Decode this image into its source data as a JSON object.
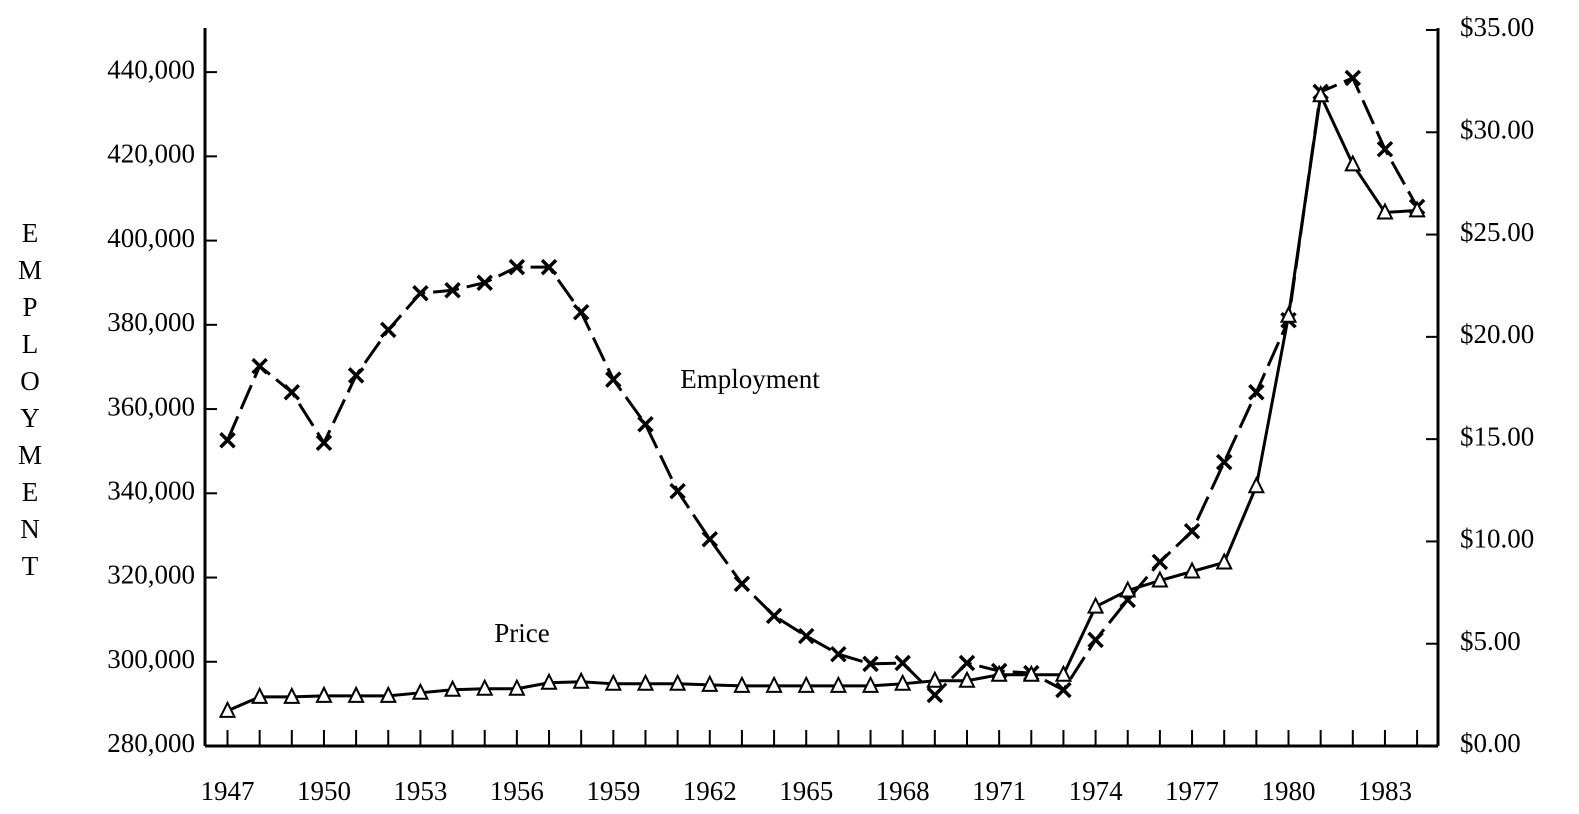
{
  "chart_data": {
    "type": "line",
    "ylabel": "EMPLOYMENT",
    "annotations": [
      "Employment",
      "Price"
    ],
    "x": [
      1947,
      1948,
      1949,
      1950,
      1951,
      1952,
      1953,
      1954,
      1955,
      1956,
      1957,
      1958,
      1959,
      1960,
      1961,
      1962,
      1963,
      1964,
      1965,
      1966,
      1967,
      1968,
      1969,
      1970,
      1971,
      1972,
      1973,
      1974,
      1975,
      1976,
      1977,
      1978,
      1979,
      1980,
      1981,
      1982,
      1983,
      1984
    ],
    "series": [
      {
        "name": "Employment",
        "color": "#000000",
        "marker": "x",
        "dashed": true,
        "values": [
          352600,
          370200,
          364000,
          352000,
          368000,
          378800,
          387500,
          388200,
          390000,
          393700,
          393700,
          383000,
          367000,
          356400,
          340500,
          329100,
          318500,
          310900,
          306100,
          301800,
          299500,
          299700,
          292100,
          299700,
          297800,
          297300,
          293300,
          305200,
          314700,
          323700,
          331000,
          347400,
          364000,
          381100,
          435300,
          438600,
          421700,
          408000
        ]
      },
      {
        "name": "Price",
        "color": "#000000",
        "marker": "triangle",
        "dashed": false,
        "axis": "y2",
        "values": [
          1.72,
          2.4,
          2.4,
          2.45,
          2.45,
          2.45,
          2.6,
          2.75,
          2.8,
          2.8,
          3.09,
          3.14,
          3.04,
          3.04,
          3.04,
          2.99,
          2.94,
          2.94,
          2.94,
          2.94,
          2.94,
          3.04,
          3.19,
          3.19,
          3.48,
          3.48,
          3.48,
          6.81,
          7.6,
          8.09,
          8.53,
          8.97,
          12.7,
          21.03,
          31.81,
          28.43,
          26.08,
          26.18
        ]
      }
    ],
    "xlim": [
      1946.3,
      1984.65
    ],
    "xticks": [
      1947,
      1950,
      1953,
      1956,
      1959,
      1962,
      1965,
      1968,
      1971,
      1974,
      1977,
      1980,
      1983
    ],
    "xminorticks": [
      1947,
      1948,
      1949,
      1950,
      1951,
      1952,
      1953,
      1954,
      1955,
      1956,
      1957,
      1958,
      1959,
      1960,
      1961,
      1962,
      1963,
      1964,
      1965,
      1966,
      1967,
      1968,
      1969,
      1970,
      1971,
      1972,
      1973,
      1974,
      1975,
      1976,
      1977,
      1978,
      1979,
      1980,
      1981,
      1982,
      1983,
      1984
    ],
    "ylim": [
      280000,
      450000
    ],
    "yticks": [
      {
        "value": 280000,
        "label": "280,000"
      },
      {
        "value": 300000,
        "label": "300,000"
      },
      {
        "value": 320000,
        "label": "320,000"
      },
      {
        "value": 340000,
        "label": "340,000"
      },
      {
        "value": 360000,
        "label": "360,000"
      },
      {
        "value": 380000,
        "label": "380,000"
      },
      {
        "value": 400000,
        "label": "400,000"
      },
      {
        "value": 420000,
        "label": "420,000"
      },
      {
        "value": 440000,
        "label": "440,000"
      }
    ],
    "y2lim": [
      0,
      35
    ],
    "y2ticks": [
      {
        "value": 0,
        "label": "$0.00"
      },
      {
        "value": 5,
        "label": "$5.00"
      },
      {
        "value": 10,
        "label": "$10.00"
      },
      {
        "value": 15,
        "label": "$15.00"
      },
      {
        "value": 20,
        "label": "$20.00"
      },
      {
        "value": 25,
        "label": "$25.00"
      },
      {
        "value": 30,
        "label": "$30.00"
      },
      {
        "value": 35,
        "label": "$35.00"
      }
    ],
    "grid": false
  }
}
